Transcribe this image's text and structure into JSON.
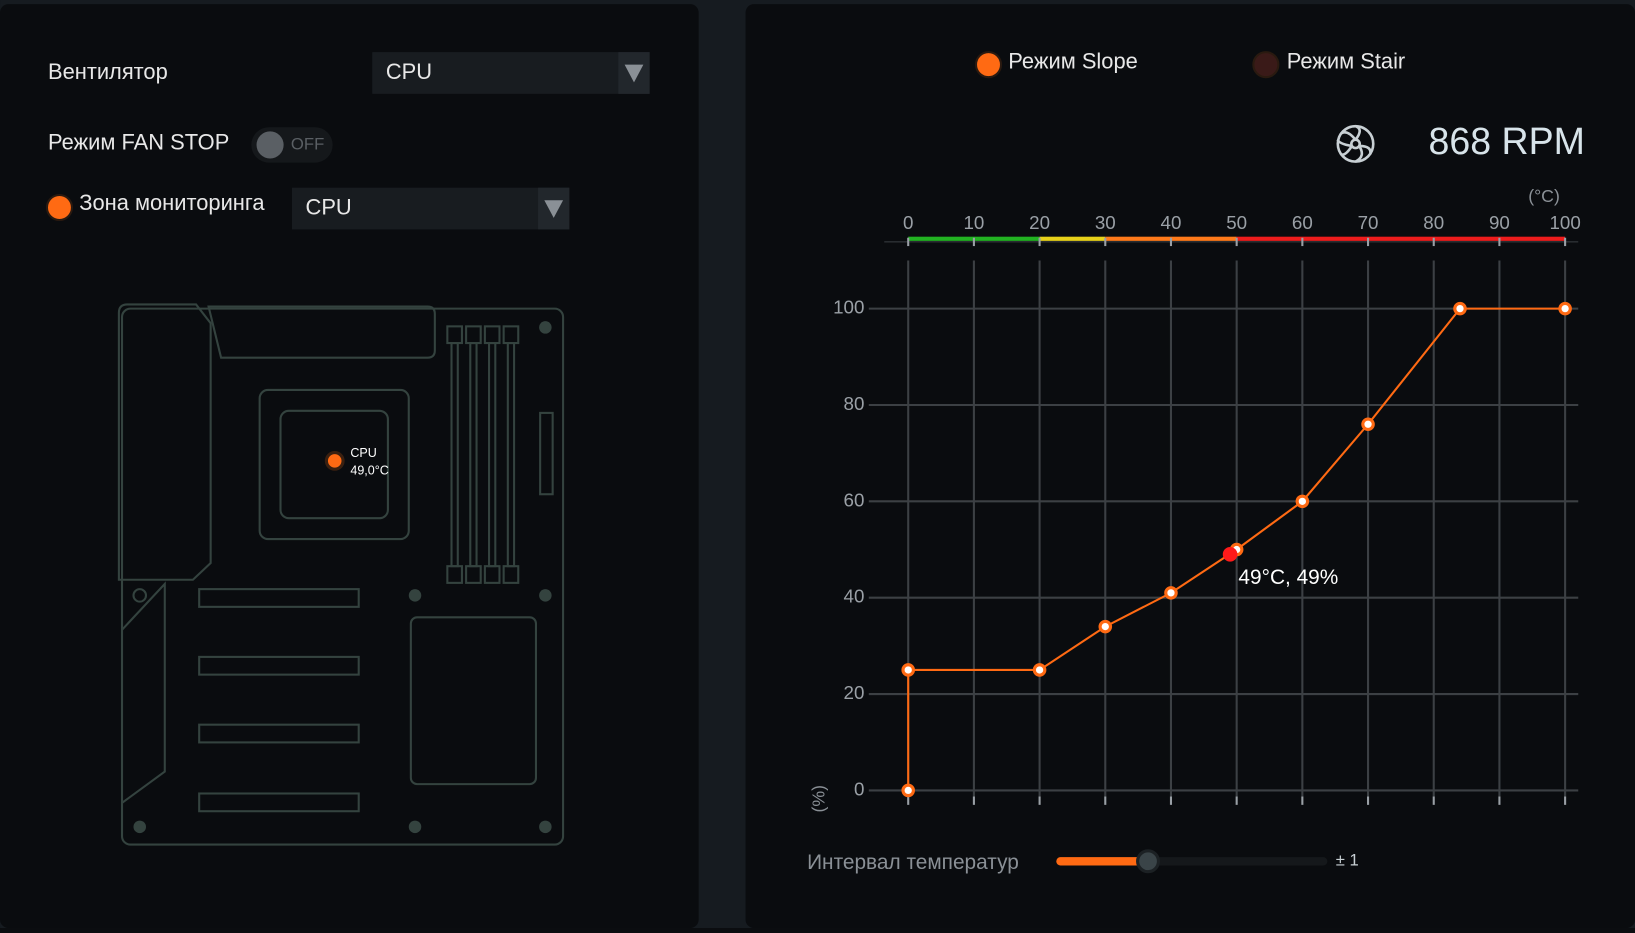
{
  "left_panel": {
    "fan_label": "Вентилятор",
    "fan_select": "CPU",
    "fan_stop_label": "Режим FAN STOP",
    "fan_stop_toggle": "OFF",
    "monitor_label": "Зона мониторинга",
    "monitor_select": "CPU",
    "sensor": {
      "name": "CPU",
      "temperature": "49,0°C"
    }
  },
  "right_panel": {
    "modes": [
      "Режим Slope",
      "Режим Stair"
    ],
    "fan_speed": "868 RPM",
    "interval_label": "Интервал температур",
    "interval_value": "± 1"
  },
  "chart_data": {
    "type": "line",
    "x_label": "(°C)",
    "y_label": "(%)",
    "x": [
      0,
      0,
      20,
      30,
      40,
      50,
      60,
      70,
      84,
      100
    ],
    "series": [
      {
        "color": "#ff6a13",
        "values": [
          0,
          25,
          25,
          34,
          41,
          50,
          60,
          76,
          100,
          100
        ]
      }
    ],
    "xlim": [
      -6,
      102
    ],
    "ylim": [
      -3,
      110
    ],
    "xticks": [
      0,
      10,
      20,
      30,
      40,
      50,
      60,
      70,
      80,
      90,
      100
    ],
    "yticks": [
      0,
      20,
      40,
      60,
      80,
      100
    ],
    "grid": true,
    "temperature_bands": [
      {
        "from": 0,
        "to": 20,
        "color": "#22b322"
      },
      {
        "from": 20,
        "to": 30,
        "color": "#e8d21a"
      },
      {
        "from": 30,
        "to": 50,
        "color": "#ff7a1a"
      },
      {
        "from": 50,
        "to": 100,
        "color": "#ee1c1c"
      }
    ],
    "current_point": {
      "x": 49,
      "y": 49,
      "label": "49°C, 49%",
      "color": "#ff1a1a"
    }
  }
}
